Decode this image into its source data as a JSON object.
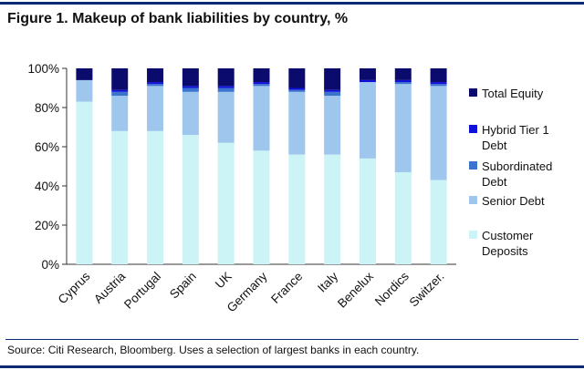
{
  "figure_title": "Figure 1.  Makeup of bank liabilities by country, %",
  "source_note": "Source: Citi Research, Bloomberg. Uses a selection of largest banks in each country.",
  "chart_data": {
    "type": "stacked-bar",
    "title": "Makeup of bank liabilities by country, %",
    "xlabel": "",
    "ylabel": "",
    "ylim": [
      0,
      100
    ],
    "yticks": [
      "0%",
      "20%",
      "40%",
      "60%",
      "80%",
      "100%"
    ],
    "categories": [
      "Cyprus",
      "Austria",
      "Portugal",
      "Spain",
      "UK",
      "Germany",
      "France",
      "Italy",
      "Benelux",
      "Nordics",
      "Switzer."
    ],
    "series": [
      {
        "name": "Customer Deposits",
        "legend_lines": [
          "Customer",
          "Deposits"
        ],
        "color": "#ccf4f6",
        "values": [
          83,
          68,
          68,
          66,
          62,
          58,
          56,
          56,
          54,
          47,
          43
        ]
      },
      {
        "name": "Senior Debt",
        "legend_lines": [
          "Senior Debt"
        ],
        "color": "#9fc6ec",
        "values": [
          11,
          18,
          23,
          22,
          26,
          33,
          32,
          30,
          39,
          45,
          48
        ]
      },
      {
        "name": "Subordinated Debt",
        "legend_lines": [
          "Subordinated",
          "Debt"
        ],
        "color": "#3b74cf",
        "values": [
          0,
          2,
          1,
          2,
          2,
          1,
          1,
          2,
          0,
          1,
          1
        ]
      },
      {
        "name": "Hybrid Tier 1 Debt",
        "legend_lines": [
          "Hybrid Tier 1",
          "Debt"
        ],
        "color": "#1010d8",
        "values": [
          0,
          1,
          1,
          1,
          1,
          1,
          1,
          1,
          1,
          1,
          1
        ]
      },
      {
        "name": "Total Equity",
        "legend_lines": [
          "Total Equity"
        ],
        "color": "#0b0b6e",
        "values": [
          6,
          11,
          7,
          9,
          9,
          7,
          10,
          11,
          6,
          6,
          7
        ]
      }
    ],
    "legend_order": [
      "Total Equity",
      "Hybrid Tier 1 Debt",
      "Subordinated Debt",
      "Senior Debt",
      "Customer Deposits"
    ],
    "legend_position": "right",
    "grid": false
  }
}
